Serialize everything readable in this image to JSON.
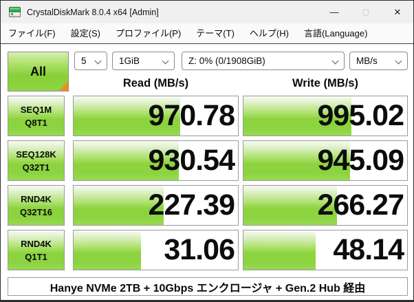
{
  "window": {
    "title": "CrystalDiskMark 8.0.4 x64 [Admin]",
    "controls": {
      "minimize": "—",
      "maximize": "▢",
      "close": "✕"
    }
  },
  "menu": {
    "items": [
      {
        "label": "ファイル(F)"
      },
      {
        "label": "設定(S)"
      },
      {
        "label": "プロファイル(P)"
      },
      {
        "label": "テーマ(T)"
      },
      {
        "label": "ヘルプ(H)"
      },
      {
        "label": "言語(Language)"
      }
    ]
  },
  "toolbar": {
    "all_button_label": "All",
    "dropdowns": {
      "test_count": "5",
      "test_size": "1GiB",
      "target_drive": "Z: 0% (0/1908GiB)",
      "unit": "MB/s"
    }
  },
  "columns": {
    "read": "Read (MB/s)",
    "write": "Write (MB/s)"
  },
  "results": [
    {
      "test": "SEQ1M",
      "queue_thread": "Q8T1",
      "read": "970.78",
      "write": "995.02",
      "read_fill": 65,
      "write_fill": 66
    },
    {
      "test": "SEQ128K",
      "queue_thread": "Q32T1",
      "read": "930.54",
      "write": "945.09",
      "read_fill": 64,
      "write_fill": 65
    },
    {
      "test": "RND4K",
      "queue_thread": "Q32T16",
      "read": "227.39",
      "write": "266.27",
      "read_fill": 55,
      "write_fill": 57
    },
    {
      "test": "RND4K",
      "queue_thread": "Q1T1",
      "read": "31.06",
      "write": "48.14",
      "read_fill": 41,
      "write_fill": 44
    }
  ],
  "comment": "Hanye NVMe 2TB + 10Gbps エンクロージャ + Gen.2 Hub 経由",
  "colors": {
    "accent_green": "#8bd23e",
    "corner_orange": "#ef8c1d"
  }
}
